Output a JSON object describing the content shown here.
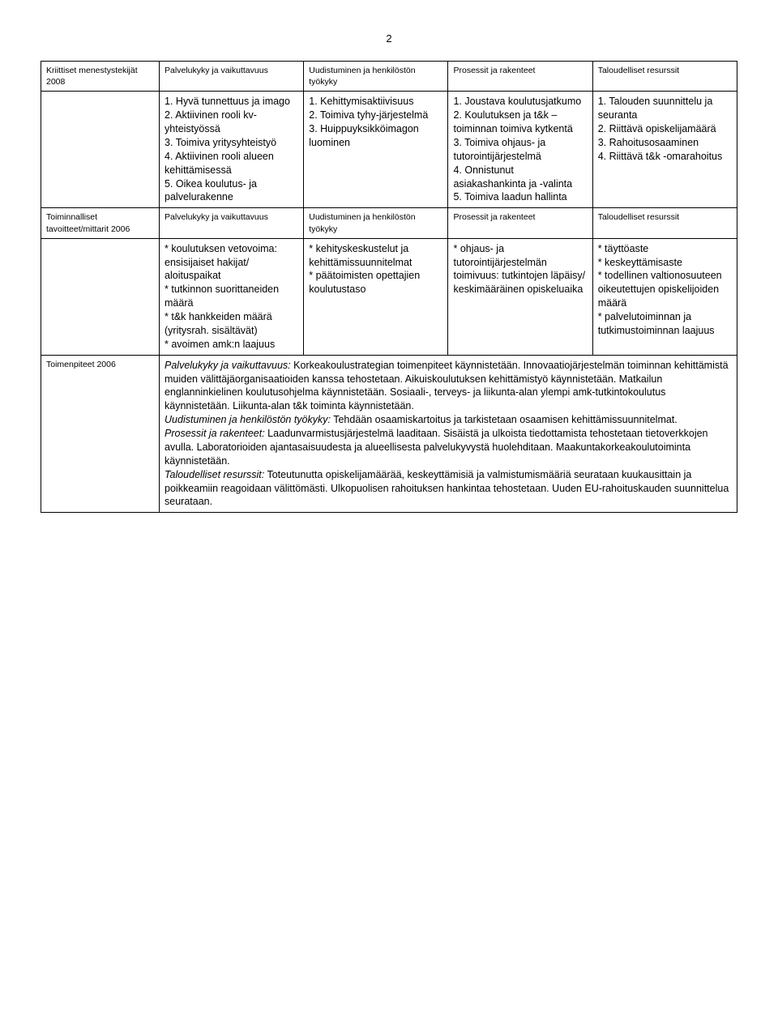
{
  "page_number": "2",
  "table": {
    "row1": {
      "label": "Kriittiset menestystekijät 2008",
      "c1": "Palvelukyky ja vaikuttavuus",
      "c2": "Uudistuminen ja henkilöstön työkyky",
      "c3": "Prosessit ja rakenteet",
      "c4": "Taloudelliset resurssit"
    },
    "row2": {
      "label": "",
      "c1": "1. Hyvä tunnettuus ja imago\n2. Aktiivinen rooli kv-yhteistyössä\n3. Toimiva yritysyhteistyö\n4. Aktiivinen rooli alueen kehittämisessä\n5. Oikea koulutus- ja palvelurakenne",
      "c2": "1. Kehittymisaktiivisuus\n2. Toimiva tyhy-järjestelmä\n3. Huippuyksikköimagon luominen",
      "c3": "1. Joustava koulutusjatkumo\n2. Koulutuksen ja t&k –toiminnan toimiva kytkentä\n3. Toimiva ohjaus- ja tutorointijärjestelmä\n4. Onnistunut asiakashankinta ja -valinta\n5. Toimiva laadun hallinta",
      "c4": "1. Talouden suunnittelu ja seuranta\n2. Riittävä opiskelijamäärä\n3. Rahoitusosaaminen\n4. Riittävä t&k -omarahoitus"
    },
    "row3": {
      "label": "Toiminnalliset tavoitteet/mittarit 2006",
      "c1": "Palvelukyky ja vaikuttavuus",
      "c2": "Uudistuminen ja henkilöstön työkyky",
      "c3": "Prosessit ja rakenteet",
      "c4": "Taloudelliset resurssit"
    },
    "row4": {
      "label": "",
      "c1": "* koulutuksen vetovoima: ensisijaiset hakijat/ aloituspaikat\n* tutkinnon suorittaneiden määrä\n* t&k hankkeiden määrä (yritysrah. sisältävät)\n* avoimen amk:n laajuus",
      "c2": "* kehityskeskustelut ja kehittämissuunnitelmat\n* päätoimisten opettajien koulutustaso",
      "c3": "* ohjaus- ja tutorointijärjestelmän toimivuus: tutkintojen läpäisy/ keskimääräinen opiskeluaika",
      "c4": "* täyttöaste\n* keskeyttämisaste\n* todellinen valtionosuuteen oikeutettujen opiskelijoiden määrä\n* palvelutoiminnan ja tutkimustoiminnan laajuus"
    },
    "row5": {
      "label": "Toimenpiteet 2006",
      "runs": [
        {
          "text": "Palvelukyky ja vaikuttavuus:",
          "italic": true
        },
        {
          "text": " Korkeakoulustrategian toimenpiteet käynnistetään. Innovaatiojärjestelmän toiminnan kehittämistä muiden välittäjäorganisaatioiden kanssa tehostetaan. Aikuiskoulutuksen kehittämistyö käynnistetään. Matkailun englanninkielinen koulutusohjelma käynnistetään. Sosiaali-, terveys- ja liikunta-alan ylempi amk-tutkintokoulutus käynnistetään. Liikunta-alan t&k toiminta käynnistetään.\n",
          "italic": false
        },
        {
          "text": "Uudistuminen ja henkilöstön työkyky:",
          "italic": true
        },
        {
          "text": " Tehdään osaamiskartoitus ja tarkistetaan osaamisen kehittämissuunnitelmat.\n",
          "italic": false
        },
        {
          "text": "Prosessit ja rakenteet:",
          "italic": true
        },
        {
          "text": " Laadunvarmistusjärjestelmä laaditaan. Sisäistä ja ulkoista tiedottamista tehostetaan tietoverkkojen avulla. Laboratorioiden ajantasaisuudesta ja alueellisesta palvelukyvystä huolehditaan. Maakuntakorkeakoulutoiminta käynnistetään.\n",
          "italic": false
        },
        {
          "text": "Taloudelliset resurssit:",
          "italic": true
        },
        {
          "text": " Toteutunutta opiskelijamäärää, keskeyttämisiä ja valmistumismääriä seurataan kuukausittain ja poikkeamiin reagoidaan välittömästi. Ulkopuolisen rahoituksen hankintaa tehostetaan. Uuden EU-rahoituskauden suunnittelua seurataan.",
          "italic": false
        }
      ]
    }
  }
}
